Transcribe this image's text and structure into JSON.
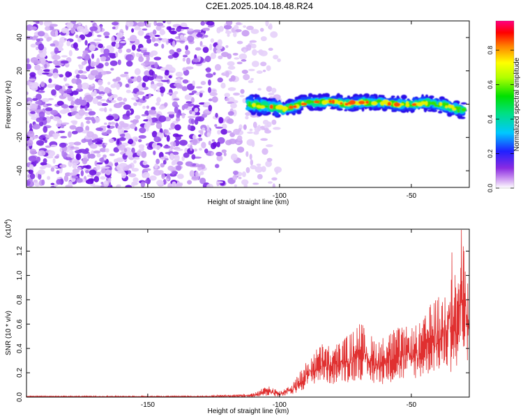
{
  "title": "C2E1.2025.104.18.48.R24",
  "chart_data": [
    {
      "type": "heatmap",
      "xlabel": "Height of straight line (km)",
      "ylabel": "Frequency (Hz)",
      "xlim": [
        -196,
        -28
      ],
      "ylim": [
        -50,
        50
      ],
      "x_ticks": [
        -150,
        -100,
        -50
      ],
      "y_ticks": [
        -40,
        -20,
        0,
        20,
        40
      ],
      "colorbar": {
        "label": "Normalized spectral amplitude",
        "range": [
          0,
          0.97
        ],
        "ticks": [
          0.0,
          0.2,
          0.4,
          0.6,
          0.8
        ]
      },
      "ridge": {
        "description_note": "",
        "x": [
          -112,
          -105,
          -98,
          -94,
          -90,
          -85,
          -80,
          -75,
          -70,
          -65,
          -60,
          -55,
          -50,
          -45,
          -40,
          -35,
          -30
        ],
        "y": [
          0,
          -1,
          -3,
          -1,
          1,
          1,
          2,
          0,
          1,
          1,
          1,
          0,
          0,
          1,
          0,
          -2,
          -4
        ]
      },
      "noise_region_x": [
        -196,
        -100
      ],
      "grid": false
    },
    {
      "type": "line",
      "xlabel": "Height of straight line (km)",
      "ylabel": "SNR (10 * v/v)",
      "y_multiplier": "(x10^4)",
      "xlim": [
        -196,
        -28
      ],
      "ylim": [
        0,
        1.38
      ],
      "x_ticks": [
        -150,
        -100,
        -50
      ],
      "y_ticks": [
        0.0,
        0.2,
        0.4,
        0.6,
        0.8,
        1.0,
        1.2
      ],
      "color": "#e03030",
      "envelope": {
        "x": [
          -196,
          -130,
          -110,
          -104,
          -100,
          -95,
          -92,
          -88,
          -84,
          -80,
          -76,
          -72,
          -70,
          -66,
          -62,
          -58,
          -54,
          -50,
          -46,
          -42,
          -38,
          -35,
          -33,
          -31,
          -29,
          -28
        ],
        "y_high": [
          0.01,
          0.01,
          0.03,
          0.1,
          0.05,
          0.12,
          0.22,
          0.35,
          0.45,
          0.42,
          0.48,
          0.55,
          0.65,
          0.52,
          0.48,
          0.55,
          0.58,
          0.58,
          0.62,
          0.8,
          0.85,
          1.28,
          1.0,
          1.38,
          1.1,
          0.8
        ],
        "y_low": [
          0.0,
          0.0,
          0.0,
          0.01,
          0.0,
          0.02,
          0.05,
          0.1,
          0.12,
          0.1,
          0.12,
          0.12,
          0.15,
          0.1,
          0.1,
          0.12,
          0.12,
          0.15,
          0.15,
          0.2,
          0.2,
          0.2,
          0.15,
          0.3,
          0.25,
          0.4
        ]
      },
      "grid": false
    }
  ]
}
